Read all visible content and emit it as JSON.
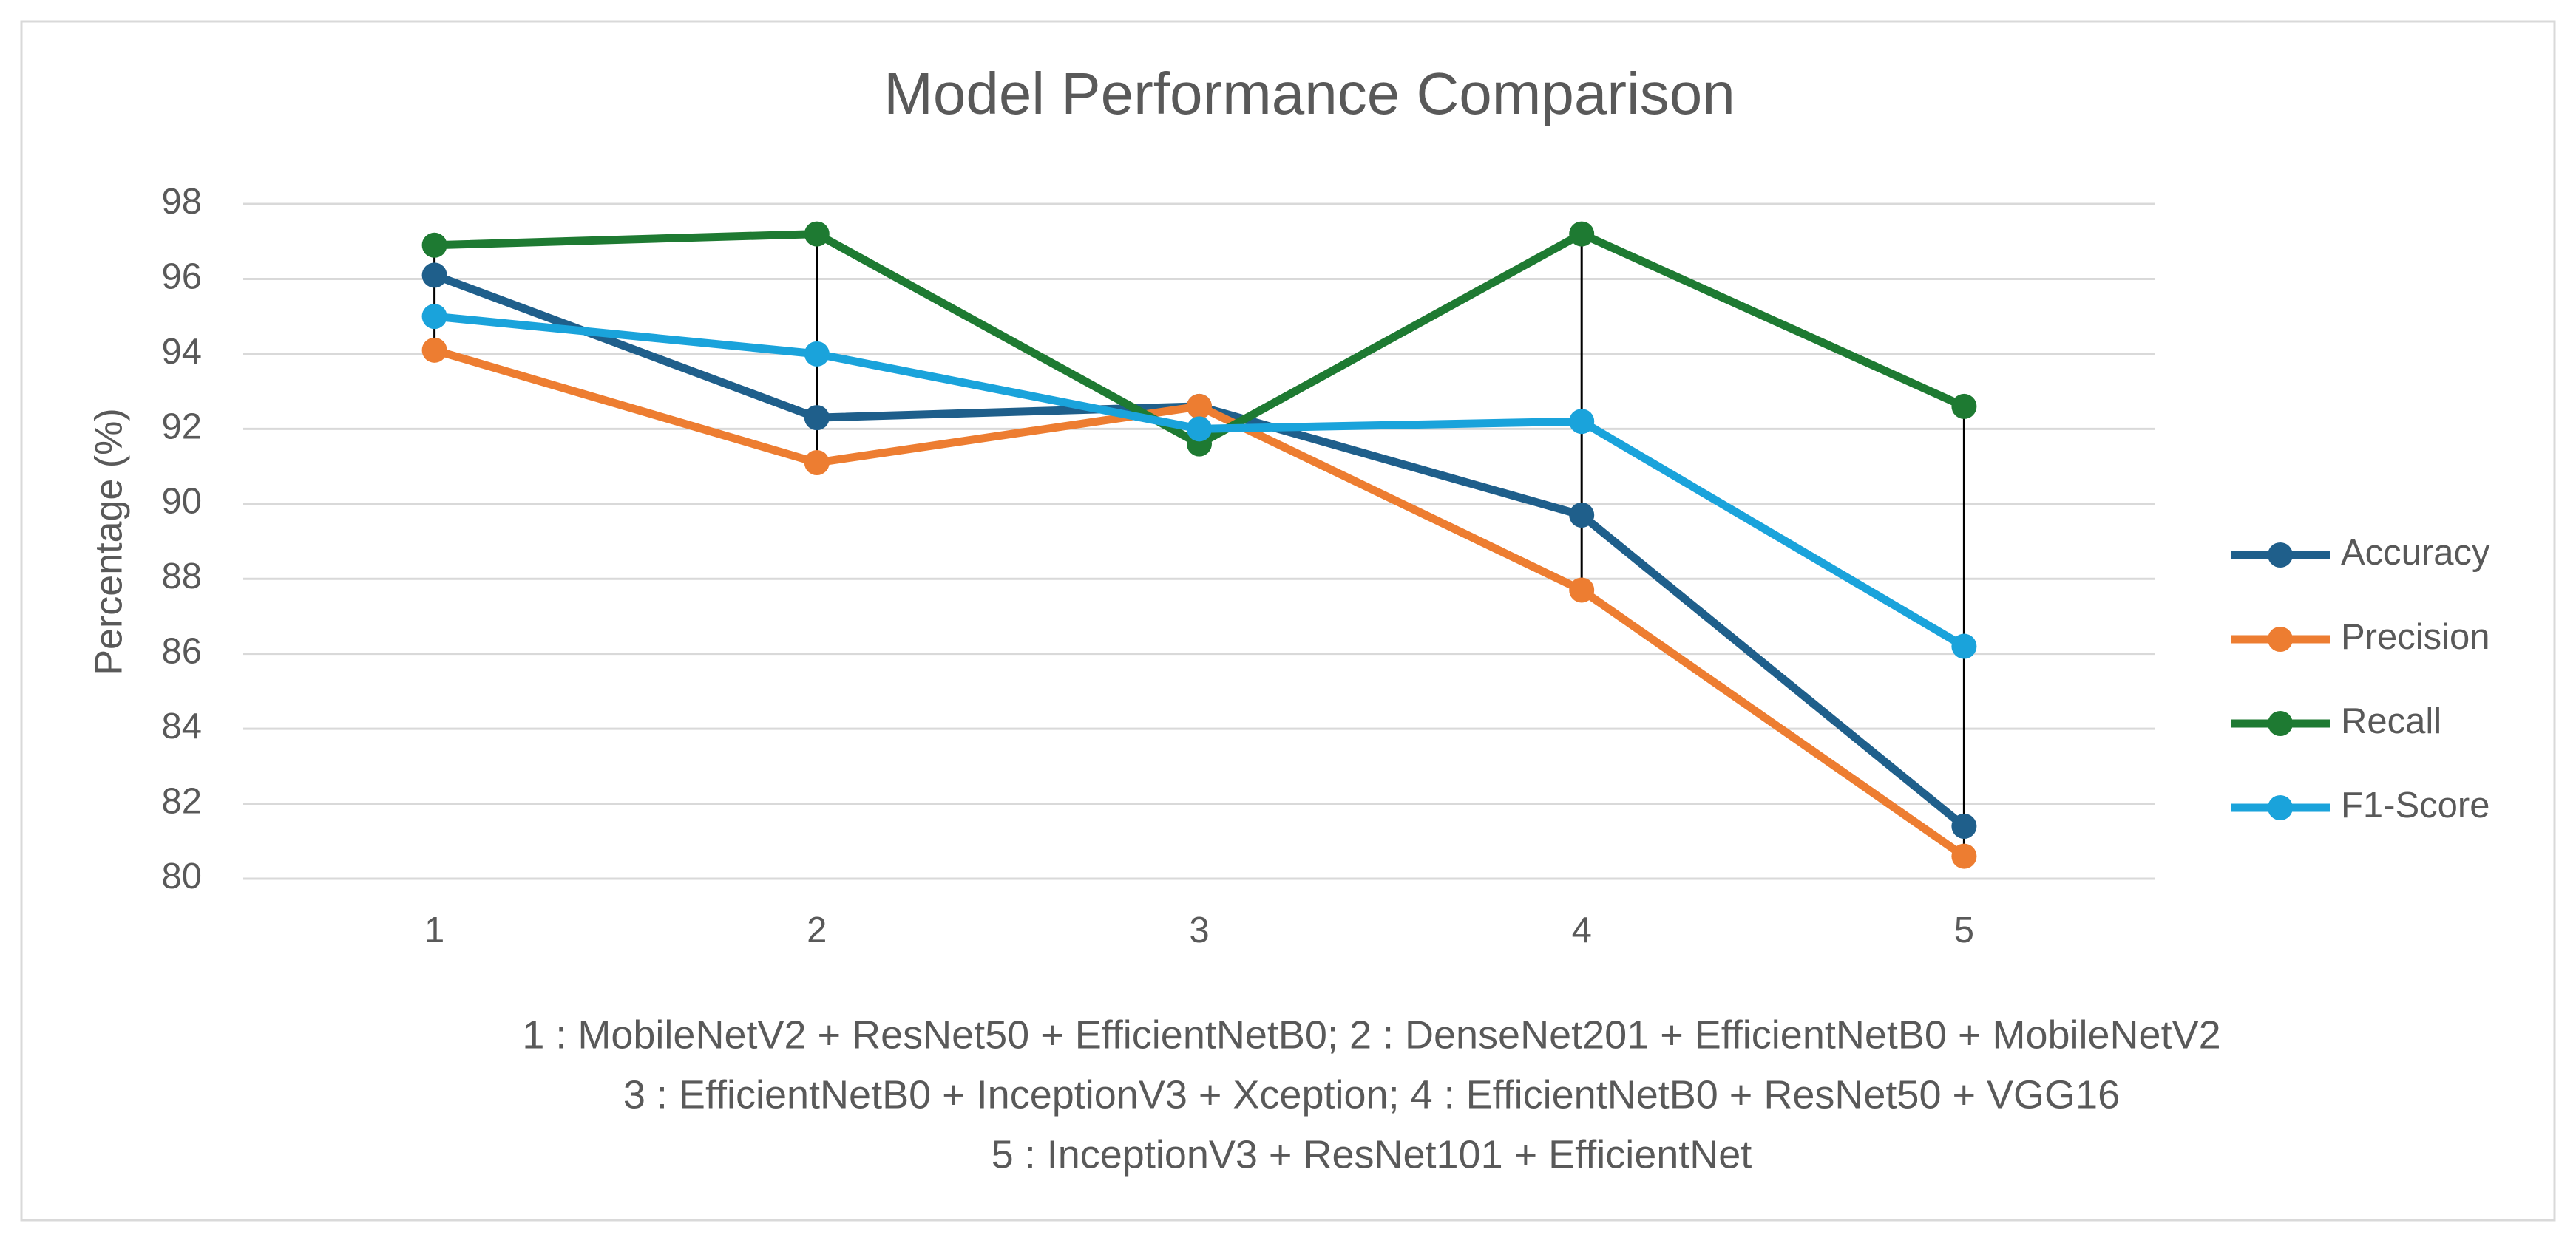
{
  "chart_data": {
    "type": "line",
    "title": "Model Performance Comparison",
    "y_label": "Percentage (%)",
    "categories": [
      "1",
      "2",
      "3",
      "4",
      "5"
    ],
    "series": [
      {
        "name": "Accuracy",
        "color": "#1f5f8b",
        "values": [
          96.1,
          92.3,
          92.6,
          89.7,
          81.4
        ]
      },
      {
        "name": "Precision",
        "color": "#ed7d31",
        "values": [
          94.1,
          91.1,
          92.6,
          87.7,
          80.6
        ]
      },
      {
        "name": "Recall",
        "color": "#1e7a32",
        "values": [
          96.9,
          97.2,
          91.6,
          97.2,
          92.6
        ]
      },
      {
        "name": "F1-Score",
        "color": "#1aa3db",
        "values": [
          95.0,
          94.0,
          92.0,
          92.2,
          86.2
        ]
      }
    ],
    "ylim": [
      80,
      98
    ],
    "yticks": [
      80,
      82,
      84,
      86,
      88,
      90,
      92,
      94,
      96,
      98
    ],
    "grid": true,
    "high_low_lines": true,
    "legend": "right",
    "notes": [
      "1 : MobileNetV2 + ResNet50 + EfficientNetB0;  2 : DenseNet201 + EfficientNetB0 + MobileNetV2",
      "3 : EfficientNetB0 + InceptionV3 + Xception;  4 : EfficientNetB0 + ResNet50 + VGG16",
      "5 : InceptionV3 + ResNet101 + EfficientNet"
    ]
  }
}
